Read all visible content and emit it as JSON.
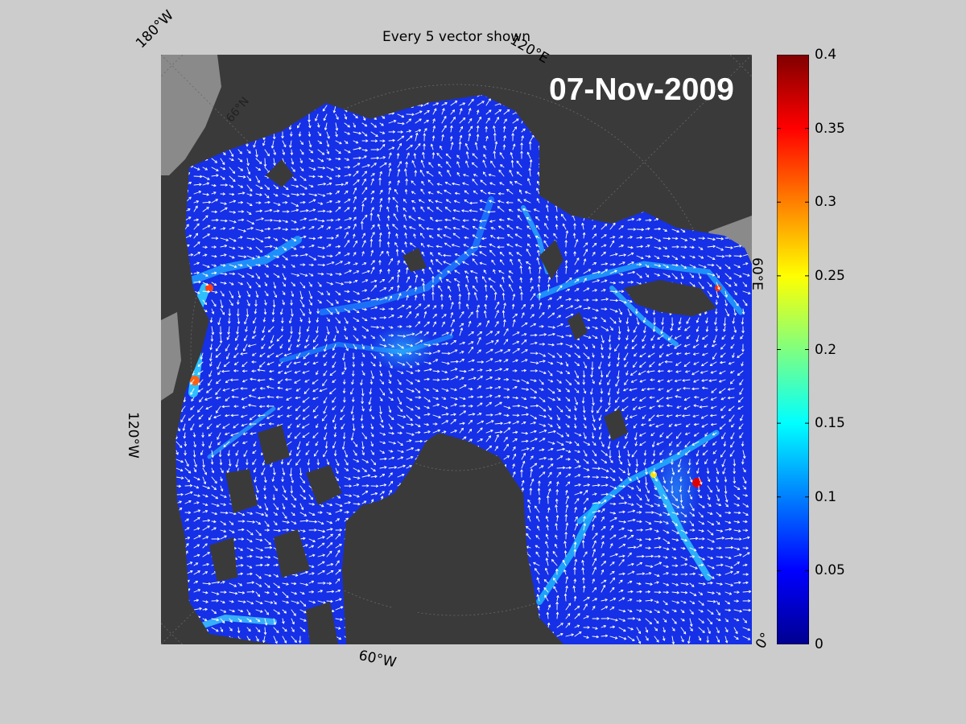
{
  "title": "Every 5 vector shown",
  "date": "07-Nov-2009",
  "lon_labels": {
    "w180": "180°W",
    "e120": "120°E",
    "e60": "60°E",
    "w120": "120°W",
    "w60": "60°W",
    "zero": "0°"
  },
  "lat_label": "66°N",
  "colorbar": {
    "colormap": "jet",
    "min": 0,
    "max": 0.4,
    "ticks": [
      "0",
      "0.05",
      "0.1",
      "0.15",
      "0.2",
      "0.25",
      "0.3",
      "0.35",
      "0.4"
    ]
  },
  "colors": {
    "background": "#cccccc",
    "land": "#3a3a3a",
    "land_grey": "#8a8a8a",
    "ice_base": "#1530e6",
    "vector": "#ffffff"
  }
}
